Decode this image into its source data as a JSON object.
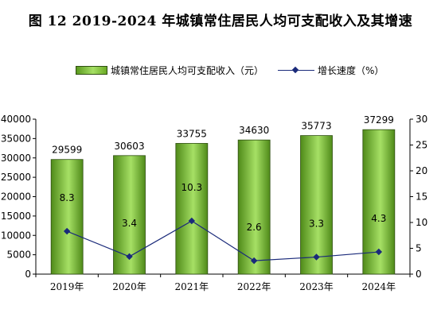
{
  "title": "图 12    2019-2024 年城镇常住居民人均可支配收入及其增速",
  "legend": {
    "bar_label": "城镇常住居民人均可支配收入（元）",
    "line_label": "增长速度（%）"
  },
  "colors": {
    "bar_dark": "#4f8a19",
    "bar_light": "#a6e065",
    "line": "#1a2a7a"
  },
  "chart_data": {
    "type": "bar+line",
    "categories": [
      "2019年",
      "2020年",
      "2021年",
      "2022年",
      "2023年",
      "2024年"
    ],
    "series": [
      {
        "name": "城镇常住居民人均可支配收入（元）",
        "type": "bar",
        "axis": "left",
        "values": [
          29599,
          30603,
          33755,
          34630,
          35773,
          37299
        ]
      },
      {
        "name": "增长速度（%）",
        "type": "line",
        "axis": "right",
        "values": [
          8.3,
          3.4,
          10.3,
          2.6,
          3.3,
          4.3
        ]
      }
    ],
    "y_left": {
      "lim": [
        0,
        40000
      ],
      "ticks": [
        0,
        5000,
        10000,
        15000,
        20000,
        25000,
        30000,
        35000,
        40000
      ]
    },
    "y_right": {
      "lim": [
        0,
        30
      ],
      "ticks": [
        0,
        5,
        10,
        15,
        20,
        25,
        30
      ]
    },
    "grid": false,
    "legend_position": "top"
  }
}
